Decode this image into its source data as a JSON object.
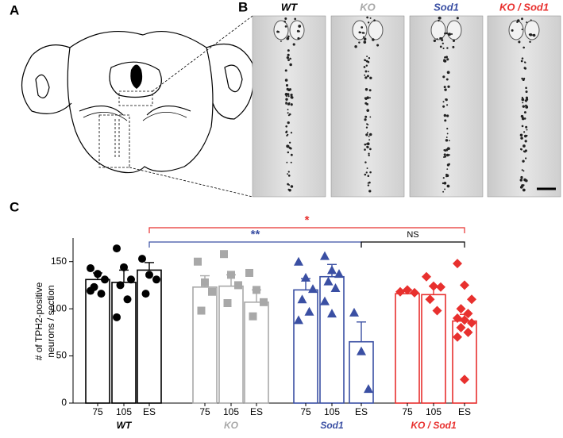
{
  "panel_labels": [
    "A",
    "B",
    "C"
  ],
  "micrographs": [
    {
      "label": "WT",
      "color": "#000000"
    },
    {
      "label": "KO",
      "color": "#a8a8a8"
    },
    {
      "label": "Sod1",
      "color": "#3a4fa3"
    },
    {
      "label": "KO / Sod1",
      "color": "#e8302e"
    }
  ],
  "chart_data": {
    "type": "bar",
    "y_label": [
      "# of TPH2-positive",
      "neurons / section"
    ],
    "ylim": [
      0,
      175
    ],
    "yticks": [
      0,
      50,
      100,
      150
    ],
    "series": [
      {
        "name": "WT",
        "color": "#000000",
        "marker": "circle",
        "categories": [
          "75",
          "105",
          "ES"
        ],
        "values": [
          131,
          128,
          141
        ],
        "errors": [
          7,
          13,
          8
        ],
        "points": [
          [
            143,
            137,
            131,
            123,
            116,
            119
          ],
          [
            164,
            144,
            131,
            125,
            110,
            91
          ],
          [
            153,
            136,
            131,
            116
          ]
        ]
      },
      {
        "name": "KO",
        "color": "#a8a8a8",
        "marker": "square",
        "categories": [
          "75",
          "105",
          "ES"
        ],
        "values": [
          123,
          124,
          107
        ],
        "errors": [
          12,
          12,
          13
        ],
        "points": [
          [
            150,
            128,
            118,
            98
          ],
          [
            158,
            136,
            125,
            106
          ],
          [
            138,
            120,
            107,
            92
          ]
        ]
      },
      {
        "name": "Sod1",
        "color": "#3a4fa3",
        "marker": "triangle",
        "categories": [
          "75",
          "105",
          "ES"
        ],
        "values": [
          120,
          134,
          65
        ],
        "errors": [
          12,
          13,
          21
        ],
        "points": [
          [
            150,
            133,
            121,
            110,
            97,
            88
          ],
          [
            156,
            141,
            137,
            129,
            122,
            108,
            95
          ],
          [
            96,
            55,
            15
          ]
        ]
      },
      {
        "name": "KO / Sod1",
        "color": "#e8302e",
        "marker": "diamond",
        "categories": [
          "75",
          "105",
          "ES"
        ],
        "values": [
          116,
          115,
          87
        ],
        "errors": [
          4,
          9,
          7
        ],
        "points": [
          [
            118,
            120,
            117
          ],
          [
            134,
            124,
            123,
            110,
            98
          ],
          [
            148,
            125,
            110,
            100,
            95,
            90,
            88,
            85,
            80,
            75,
            70,
            25
          ]
        ]
      }
    ],
    "annotations": [
      {
        "text": "*",
        "color": "#e8302e"
      },
      {
        "text": "**",
        "color": "#3a4fa3"
      },
      {
        "text": "NS",
        "color": "#000000"
      }
    ]
  }
}
